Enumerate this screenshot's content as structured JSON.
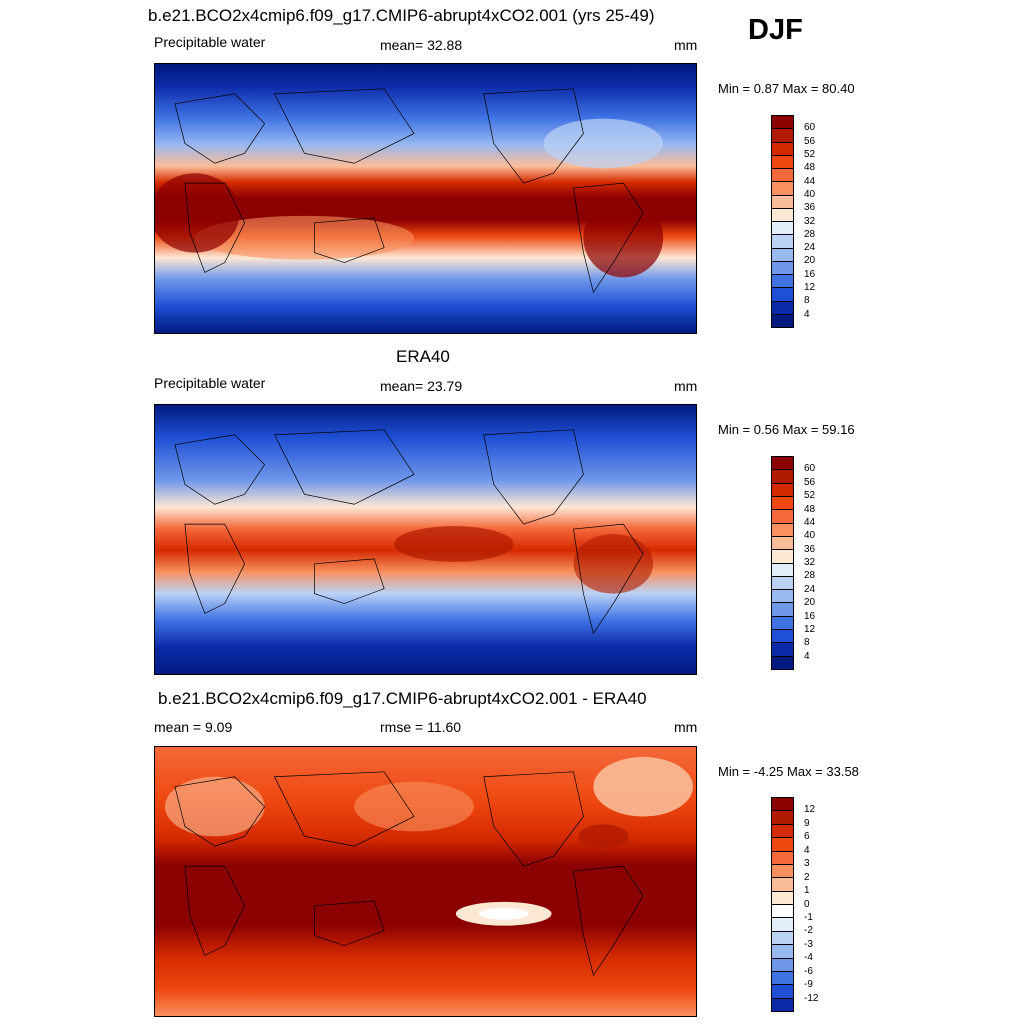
{
  "season": "DJF",
  "panels": [
    {
      "id": "model",
      "title": "b.e21.BCO2x4cmip6.f09_g17.CMIP6-abrupt4xCO2.001 (yrs 25-49)",
      "left_label": "Precipitable water",
      "center_label": "mean=  32.88",
      "units": "mm",
      "minmax": "Min =   0.87 Max =  80.40",
      "colorbar_labels": [
        "60",
        "56",
        "52",
        "48",
        "44",
        "40",
        "36",
        "32",
        "28",
        "24",
        "20",
        "16",
        "12",
        "8",
        "4"
      ],
      "colorbar_colors": [
        "#8b0000",
        "#b01a00",
        "#d42a00",
        "#ee4810",
        "#f5683a",
        "#f8915f",
        "#fbbd98",
        "#fde8d4",
        "#e3eefb",
        "#bcd2f5",
        "#98b8f0",
        "#6f98ea",
        "#3f73e4",
        "#1f4fd4",
        "#0c2aa8",
        "#001a80"
      ],
      "colorbar_levels": [
        60,
        56,
        52,
        48,
        44,
        40,
        36,
        32,
        28,
        24,
        20,
        16,
        12,
        8,
        4
      ]
    },
    {
      "id": "obs",
      "title": "ERA40",
      "left_label": "Precipitable water",
      "center_label": "mean=  23.79",
      "units": "mm",
      "minmax": "Min =   0.56 Max =  59.16",
      "colorbar_labels": [
        "60",
        "56",
        "52",
        "48",
        "44",
        "40",
        "36",
        "32",
        "28",
        "24",
        "20",
        "16",
        "12",
        "8",
        "4"
      ],
      "colorbar_colors": [
        "#8b0000",
        "#b01a00",
        "#d42a00",
        "#ee4810",
        "#f5683a",
        "#f8915f",
        "#fbbd98",
        "#fde8d4",
        "#e3eefb",
        "#bcd2f5",
        "#98b8f0",
        "#6f98ea",
        "#3f73e4",
        "#1f4fd4",
        "#0c2aa8",
        "#001a80"
      ],
      "colorbar_levels": [
        60,
        56,
        52,
        48,
        44,
        40,
        36,
        32,
        28,
        24,
        20,
        16,
        12,
        8,
        4
      ]
    },
    {
      "id": "diff",
      "title": "b.e21.BCO2x4cmip6.f09_g17.CMIP6-abrupt4xCO2.001 - ERA40",
      "left_label": "mean =   9.09",
      "center_label": "rmse =  11.60",
      "units": "mm",
      "minmax": "Min =  -4.25 Max =  33.58",
      "colorbar_labels": [
        "12",
        "9",
        "6",
        "4",
        "3",
        "2",
        "1",
        "0",
        "-1",
        "-2",
        "-3",
        "-4",
        "-6",
        "-9",
        "-12"
      ],
      "colorbar_colors": [
        "#8b0000",
        "#b01a00",
        "#d42a00",
        "#ee4810",
        "#f5683a",
        "#f8915f",
        "#fbbd98",
        "#fde8d4",
        "#ffffff",
        "#e3eefb",
        "#bcd2f5",
        "#98b8f0",
        "#6f98ea",
        "#3f73e4",
        "#1f4fd4",
        "#0c2aa8"
      ],
      "colorbar_levels": [
        12,
        9,
        6,
        4,
        3,
        2,
        1,
        0,
        -1,
        -2,
        -3,
        -4,
        -6,
        -9,
        -12
      ]
    }
  ]
}
